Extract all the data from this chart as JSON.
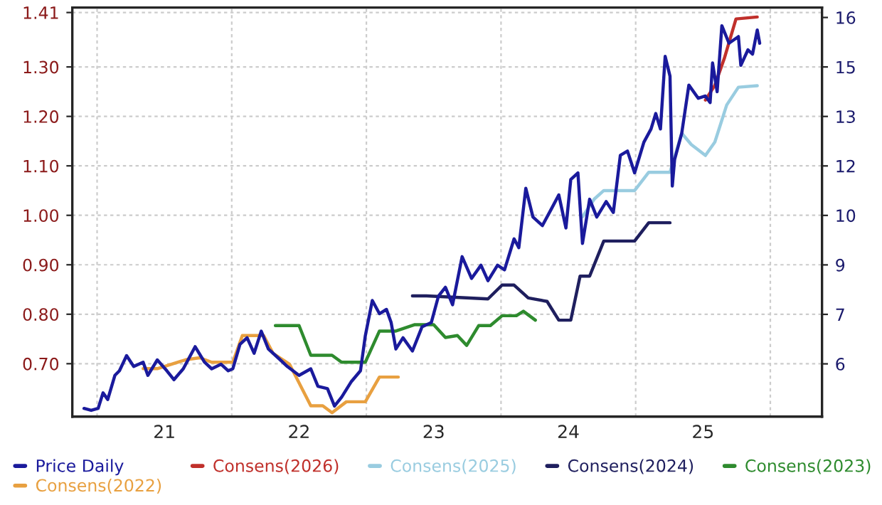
{
  "chart_data": {
    "type": "line",
    "legend": "bottom",
    "grid": true,
    "xlim": [
      2020.316,
      2025.884
    ],
    "xticks": [
      {
        "value": 2020.5,
        "label": null
      },
      {
        "value": 2021,
        "label": "21"
      },
      {
        "value": 2021.5,
        "label": null
      },
      {
        "value": 2022,
        "label": "22"
      },
      {
        "value": 2022.5,
        "label": null
      },
      {
        "value": 2023,
        "label": "23"
      },
      {
        "value": 2023.5,
        "label": null
      },
      {
        "value": 2024,
        "label": "24"
      },
      {
        "value": 2024.5,
        "label": null
      },
      {
        "value": 2025,
        "label": "25"
      },
      {
        "value": 2025.5,
        "label": null
      }
    ],
    "ylim": [
      0.593,
      1.42
    ],
    "yticks": [
      {
        "value": 0.7,
        "label": "0.70"
      },
      {
        "value": 0.8,
        "label": "0.80"
      },
      {
        "value": 0.9,
        "label": "0.90"
      },
      {
        "value": 1.0,
        "label": "1.00"
      },
      {
        "value": 1.1,
        "label": "1.10"
      },
      {
        "value": 1.2,
        "label": "1.20"
      },
      {
        "value": 1.3,
        "label": "1.30"
      },
      1.41
    ],
    "y2lim": [
      4.4,
      16.8
    ],
    "y2ticks": [
      6,
      {
        "value": 7.5,
        "label": "7"
      },
      9,
      {
        "value": 10.5,
        "label": "10"
      },
      12,
      {
        "value": 13.5,
        "label": "13"
      },
      15,
      {
        "value": 16.5,
        "label": "16"
      }
    ],
    "series": [
      {
        "name": "Price Daily",
        "color": "#1a1a9c",
        "axis": "y2",
        "x": [
          2020.403,
          2020.456,
          2020.508,
          2020.544,
          2020.579,
          2020.632,
          2020.666,
          2020.719,
          2020.772,
          2020.842,
          2020.877,
          2020.947,
          2021.018,
          2021.071,
          2021.14,
          2021.228,
          2021.298,
          2021.351,
          2021.421,
          2021.474,
          2021.508,
          2021.561,
          2021.614,
          2021.666,
          2021.719,
          2021.772,
          2021.842,
          2021.913,
          2022.0,
          2022.087,
          2022.14,
          2022.211,
          2022.263,
          2022.316,
          2022.386,
          2022.456,
          2022.492,
          2022.544,
          2022.597,
          2022.649,
          2022.684,
          2022.719,
          2022.772,
          2022.842,
          2022.913,
          2022.982,
          2023.035,
          2023.087,
          2023.14,
          2023.211,
          2023.281,
          2023.351,
          2023.403,
          2023.474,
          2023.526,
          2023.597,
          2023.632,
          2023.684,
          2023.737,
          2023.807,
          2023.877,
          2023.929,
          2023.982,
          2024.018,
          2024.071,
          2024.105,
          2024.158,
          2024.211,
          2024.281,
          2024.334,
          2024.386,
          2024.439,
          2024.492,
          2024.561,
          2024.614,
          2024.649,
          2024.684,
          2024.719,
          2024.755,
          2024.772,
          2024.789,
          2024.842,
          2024.895,
          2024.965,
          2025.018,
          2025.053,
          2025.071,
          2025.105,
          2025.14,
          2025.193,
          2025.263,
          2025.281,
          2025.334,
          2025.368,
          2025.403,
          2025.421
        ],
        "values": [
          4.65,
          4.59,
          4.65,
          5.12,
          4.92,
          5.65,
          5.79,
          6.25,
          5.92,
          6.05,
          5.65,
          6.12,
          5.79,
          5.52,
          5.85,
          6.52,
          6.05,
          5.85,
          5.99,
          5.79,
          5.85,
          6.59,
          6.79,
          6.32,
          6.99,
          6.45,
          6.19,
          5.92,
          5.65,
          5.85,
          5.32,
          5.25,
          4.72,
          4.99,
          5.45,
          5.79,
          6.85,
          7.92,
          7.52,
          7.65,
          7.25,
          6.45,
          6.79,
          6.39,
          7.12,
          7.25,
          8.05,
          8.32,
          7.79,
          9.25,
          8.59,
          8.99,
          8.52,
          8.99,
          8.85,
          9.79,
          9.52,
          11.32,
          10.45,
          10.19,
          10.72,
          11.12,
          10.12,
          11.59,
          11.79,
          9.65,
          10.99,
          10.45,
          10.92,
          10.59,
          12.32,
          12.45,
          11.79,
          12.72,
          13.12,
          13.59,
          13.12,
          15.32,
          14.72,
          11.39,
          12.19,
          12.99,
          14.45,
          14.05,
          14.12,
          13.92,
          15.12,
          14.25,
          16.25,
          15.72,
          15.92,
          15.05,
          15.52,
          15.39,
          16.12,
          15.72
        ]
      },
      {
        "name": "Consens(2026)",
        "color": "#c0302b",
        "x": [
          2025.018,
          2025.088,
          2025.158,
          2025.245,
          2025.403
        ],
        "values": [
          1.233,
          1.263,
          1.317,
          1.397,
          1.401
        ]
      },
      {
        "name": "Consens(2025)",
        "color": "#99cce0",
        "x": [
          2024.105,
          2024.193,
          2024.263,
          2024.492,
          2024.597,
          2024.755,
          2024.842,
          2024.913,
          2025.018,
          2025.088,
          2025.176,
          2025.263,
          2025.403
        ],
        "values": [
          0.997,
          1.033,
          1.05,
          1.05,
          1.087,
          1.087,
          1.166,
          1.143,
          1.121,
          1.148,
          1.223,
          1.259,
          1.262
        ]
      },
      {
        "name": "Consens(2024)",
        "color": "#1f1f5e",
        "x": [
          2022.842,
          2022.947,
          2023.403,
          2023.508,
          2023.597,
          2023.702,
          2023.842,
          2023.929,
          2024.018,
          2024.087,
          2024.158,
          2024.263,
          2024.492,
          2024.597,
          2024.755
        ],
        "values": [
          0.837,
          0.837,
          0.831,
          0.859,
          0.859,
          0.833,
          0.826,
          0.788,
          0.788,
          0.877,
          0.877,
          0.948,
          0.948,
          0.985,
          0.985
        ]
      },
      {
        "name": "Consens(2023)",
        "color": "#2e8b2e",
        "x": [
          2021.824,
          2022.0,
          2022.087,
          2022.245,
          2022.316,
          2022.492,
          2022.597,
          2022.719,
          2022.86,
          2023.0,
          2023.087,
          2023.176,
          2023.245,
          2023.334,
          2023.421,
          2023.508,
          2023.614,
          2023.666,
          2023.755
        ],
        "values": [
          0.777,
          0.777,
          0.717,
          0.717,
          0.703,
          0.703,
          0.766,
          0.766,
          0.779,
          0.779,
          0.753,
          0.757,
          0.737,
          0.777,
          0.777,
          0.797,
          0.797,
          0.806,
          0.788
        ]
      },
      {
        "name": "Consens(2022)",
        "color": "#e8a040",
        "x": [
          2020.842,
          2020.947,
          2021.158,
          2021.263,
          2021.351,
          2021.508,
          2021.579,
          2021.737,
          2021.807,
          2021.929,
          2022.087,
          2022.176,
          2022.245,
          2022.351,
          2022.492,
          2022.597,
          2022.737
        ],
        "values": [
          0.69,
          0.69,
          0.708,
          0.712,
          0.703,
          0.703,
          0.757,
          0.757,
          0.721,
          0.699,
          0.615,
          0.615,
          0.601,
          0.623,
          0.623,
          0.673,
          0.673
        ]
      }
    ]
  }
}
